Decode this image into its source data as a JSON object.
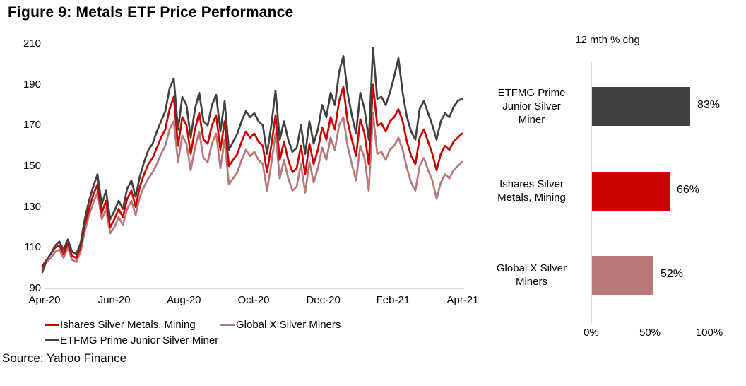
{
  "title": "Figure 9: Metals ETF Price Performance",
  "source": "Source: Yahoo Finance",
  "colors": {
    "dark": "#414141",
    "red": "#cc0000",
    "mauve": "#b87779",
    "axis": "#d9d9d9"
  },
  "chart_data": [
    {
      "type": "line",
      "title": "",
      "xlabel": "",
      "ylabel": "",
      "ylim": [
        90,
        210
      ],
      "grid": false,
      "legend_position": "bottom",
      "y_ticks": [
        "210",
        "190",
        "170",
        "150",
        "130",
        "110",
        "90"
      ],
      "x_tick_labels": [
        "Apr-20",
        "Jun-20",
        "Aug-20",
        "Oct-20",
        "Dec-20",
        "Feb-21",
        "Apr-21"
      ],
      "x_range_note": "daily ETF prices indexed, Apr-2020 to Apr-2021, ~3-day sampling below",
      "series": [
        {
          "name": "Ishares Silver Metals, Mining",
          "color": "#cc0000",
          "values": [
            101,
            104,
            107,
            110,
            111,
            107,
            112,
            106,
            105,
            110,
            121,
            129,
            136,
            141,
            127,
            133,
            120,
            124,
            129,
            125,
            134,
            138,
            130,
            140,
            146,
            151,
            154,
            159,
            164,
            168,
            178,
            184,
            160,
            174,
            170,
            156,
            168,
            176,
            163,
            161,
            170,
            175,
            158,
            172,
            150,
            153,
            156,
            162,
            167,
            164,
            166,
            162,
            160,
            147,
            160,
            175,
            153,
            162,
            153,
            147,
            149,
            160,
            146,
            161,
            151,
            158,
            169,
            163,
            174,
            168,
            182,
            189,
            172,
            163,
            155,
            173,
            166,
            151,
            190,
            170,
            171,
            167,
            172,
            174,
            178,
            172,
            162,
            155,
            151,
            164,
            168,
            162,
            156,
            148,
            156,
            160,
            158,
            162,
            164,
            166
          ]
        },
        {
          "name": "Global X Silver Miners",
          "color": "#b87779",
          "values": [
            100,
            103,
            105,
            108,
            109,
            105,
            110,
            104,
            103,
            108,
            118,
            126,
            132,
            137,
            124,
            129,
            117,
            120,
            125,
            121,
            129,
            133,
            126,
            135,
            140,
            144,
            147,
            151,
            156,
            160,
            168,
            172,
            152,
            165,
            161,
            148,
            159,
            167,
            154,
            152,
            161,
            166,
            149,
            163,
            141,
            144,
            147,
            153,
            158,
            155,
            157,
            153,
            151,
            138,
            151,
            166,
            144,
            153,
            144,
            138,
            140,
            151,
            137,
            152,
            142,
            149,
            159,
            153,
            164,
            158,
            170,
            174,
            160,
            151,
            143,
            160,
            154,
            138,
            176,
            156,
            157,
            153,
            158,
            160,
            164,
            158,
            149,
            142,
            138,
            150,
            154,
            148,
            143,
            134,
            142,
            146,
            144,
            148,
            150,
            152
          ]
        },
        {
          "name": "ETFMG Prime Junior Silver Miner",
          "color": "#414141",
          "values": [
            98,
            104,
            107,
            111,
            113,
            109,
            114,
            108,
            107,
            112,
            124,
            133,
            140,
            146,
            131,
            138,
            124,
            128,
            133,
            129,
            139,
            143,
            135,
            145,
            152,
            158,
            161,
            167,
            172,
            177,
            188,
            193,
            168,
            184,
            180,
            164,
            178,
            186,
            172,
            170,
            180,
            185,
            167,
            182,
            158,
            162,
            166,
            172,
            177,
            174,
            176,
            172,
            170,
            156,
            170,
            187,
            163,
            172,
            163,
            157,
            159,
            170,
            156,
            172,
            161,
            168,
            180,
            174,
            186,
            180,
            196,
            204,
            186,
            175,
            166,
            186,
            178,
            163,
            208,
            183,
            184,
            180,
            186,
            194,
            203,
            186,
            174,
            167,
            163,
            178,
            182,
            176,
            170,
            163,
            172,
            176,
            174,
            179,
            182,
            183
          ]
        }
      ]
    },
    {
      "type": "bar",
      "orientation": "horizontal",
      "title": "12 mth % chg",
      "xlim": [
        0,
        100
      ],
      "x_ticks": [
        "0%",
        "50%",
        "100%"
      ],
      "categories": [
        "ETFMG Prime\nJunior Silver\nMiner",
        "Ishares Silver\nMetals, Mining",
        "Global X Silver\nMiners"
      ],
      "values": [
        83,
        66,
        52
      ],
      "value_labels": [
        "83%",
        "66%",
        "52%"
      ],
      "colors": [
        "#414141",
        "#cc0000",
        "#b87779"
      ]
    }
  ]
}
